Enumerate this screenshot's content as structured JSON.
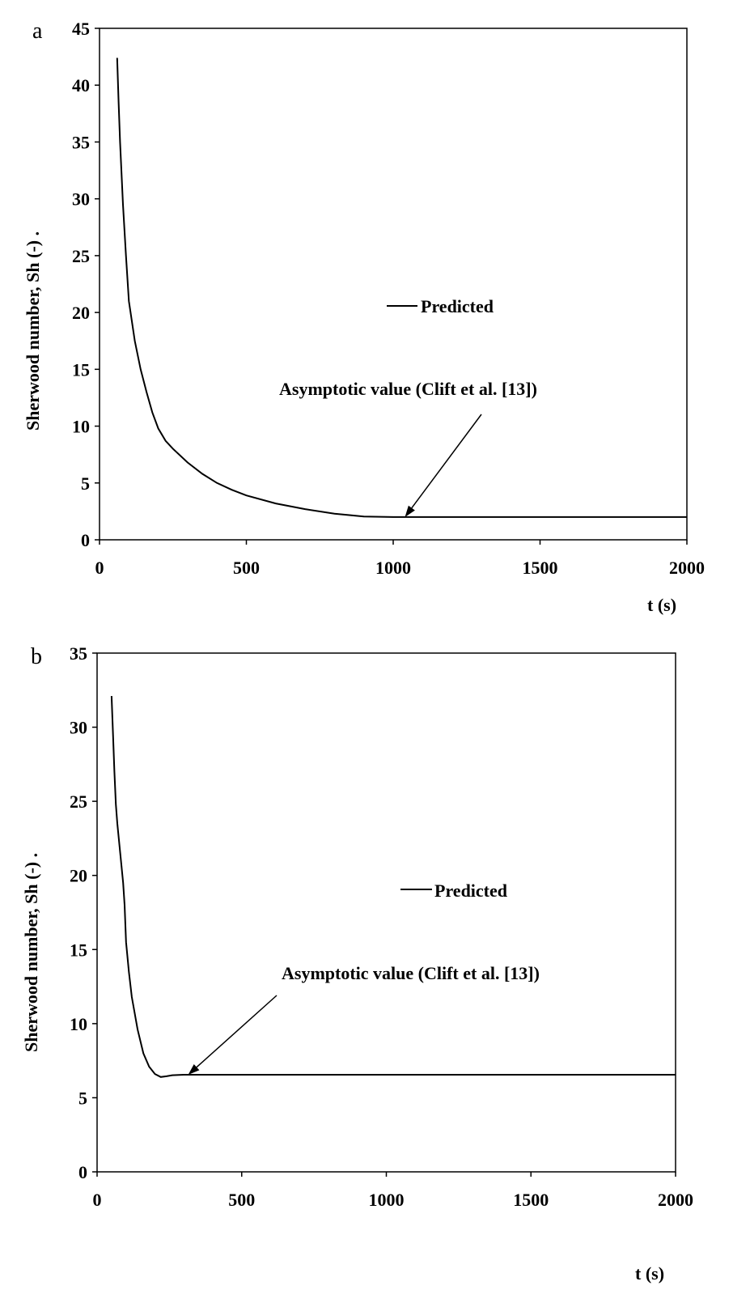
{
  "chart_data": [
    {
      "panel": "a",
      "type": "line",
      "xlabel": "t (s)",
      "ylabel": "Sherwood number, Sh (-)  .",
      "xlim": [
        0,
        2000
      ],
      "ylim": [
        0,
        45
      ],
      "xticks": [
        0,
        500,
        1000,
        1500,
        2000
      ],
      "yticks": [
        0,
        5,
        10,
        15,
        20,
        25,
        30,
        35,
        40,
        45
      ],
      "grid": false,
      "legend_position": "center-right",
      "series": [
        {
          "name": "Predicted",
          "color": "#000000",
          "x": [
            60,
            65,
            70,
            80,
            90,
            100,
            120,
            140,
            160,
            180,
            200,
            225,
            250,
            300,
            350,
            400,
            450,
            500,
            600,
            700,
            800,
            900,
            1000,
            1100,
            1200,
            1400,
            1600,
            1800,
            2000
          ],
          "y": [
            42.4,
            38.5,
            35.0,
            29.5,
            25.0,
            21.0,
            17.5,
            15.0,
            13.0,
            11.2,
            9.8,
            8.7,
            8.0,
            6.8,
            5.8,
            5.0,
            4.4,
            3.9,
            3.2,
            2.7,
            2.3,
            2.05,
            2.0,
            2.0,
            2.0,
            2.0,
            2.0,
            2.0,
            2.0
          ]
        }
      ],
      "annotation": {
        "text": "Asymptotic value (Clift et al. [13])",
        "arrow_to": [
          1040,
          2.0
        ]
      }
    },
    {
      "panel": "b",
      "type": "line",
      "xlabel": "t (s)",
      "ylabel": "Sherwood number, Sh (-)  .",
      "xlim": [
        0,
        2000
      ],
      "ylim": [
        0,
        35
      ],
      "xticks": [
        0,
        500,
        1000,
        1500,
        2000
      ],
      "yticks": [
        0,
        5,
        10,
        15,
        20,
        25,
        30,
        35
      ],
      "grid": false,
      "legend_position": "center-right",
      "series": [
        {
          "name": "Predicted",
          "color": "#000000",
          "x": [
            50,
            55,
            60,
            65,
            70,
            80,
            90,
            95,
            100,
            110,
            120,
            140,
            160,
            180,
            200,
            220,
            240,
            260,
            300,
            350,
            400,
            600,
            1000,
            1500,
            2000
          ],
          "y": [
            32.1,
            29.5,
            27.0,
            24.8,
            23.5,
            21.5,
            19.5,
            18.0,
            15.5,
            13.5,
            11.8,
            9.6,
            8.0,
            7.1,
            6.6,
            6.4,
            6.45,
            6.52,
            6.55,
            6.55,
            6.55,
            6.55,
            6.55,
            6.55,
            6.55
          ]
        }
      ],
      "annotation": {
        "text": "Asymptotic value (Clift et al. [13])",
        "arrow_to": [
          315,
          6.55
        ]
      }
    }
  ]
}
